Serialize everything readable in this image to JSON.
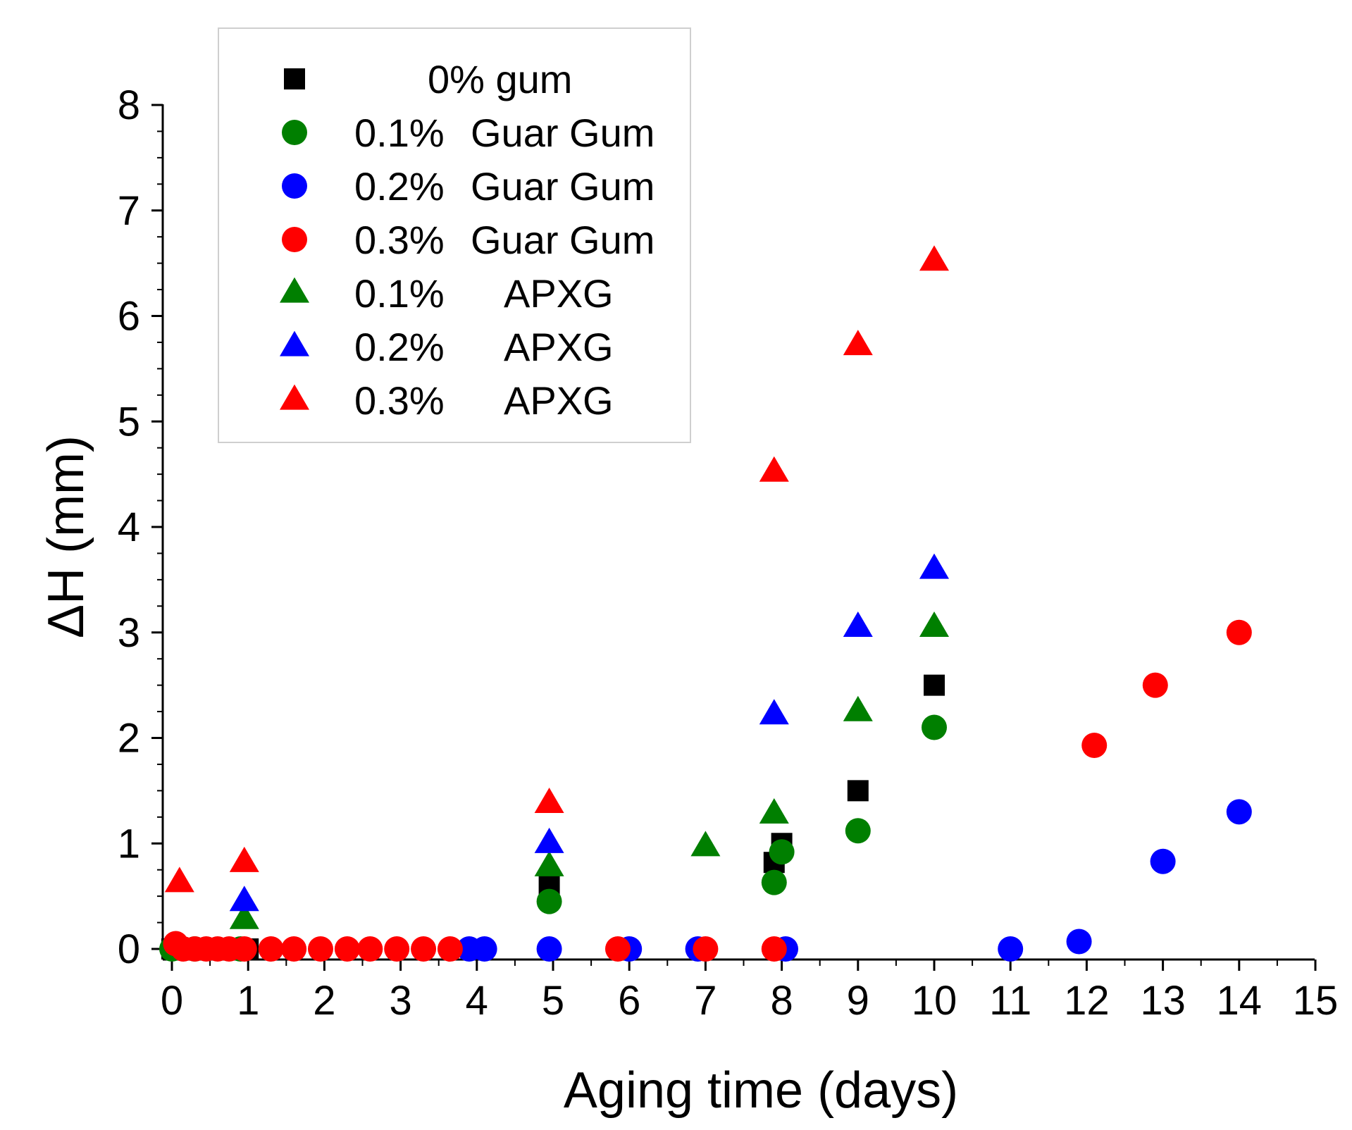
{
  "chart_data": {
    "type": "scatter",
    "title": "",
    "xlabel": "Aging time (days)",
    "ylabel": "ΔH (mm)",
    "xlim": [
      0,
      15
    ],
    "ylim": [
      0,
      8
    ],
    "xticks": [
      0,
      1,
      2,
      3,
      4,
      5,
      6,
      7,
      8,
      9,
      10,
      11,
      12,
      13,
      14,
      15
    ],
    "yticks": [
      0,
      1,
      2,
      3,
      4,
      5,
      6,
      7,
      8
    ],
    "legend_position": "top-left",
    "series": [
      {
        "name": "0% gum",
        "label_concentration": "",
        "label_material": "0% gum",
        "marker": "square",
        "color": "#000000",
        "points": [
          [
            0,
            0
          ],
          [
            0.2,
            0
          ],
          [
            0.4,
            0
          ],
          [
            0.6,
            0
          ],
          [
            0.8,
            0
          ],
          [
            1,
            0
          ],
          [
            4.95,
            0.6
          ],
          [
            7.9,
            0.82
          ],
          [
            8,
            1.0
          ],
          [
            9,
            1.5
          ],
          [
            10,
            2.5
          ]
        ]
      },
      {
        "name": "0.1% Guar Gum",
        "label_concentration": "0.1%",
        "label_material": "Guar Gum",
        "marker": "circle",
        "color": "#007f00",
        "points": [
          [
            0,
            0
          ],
          [
            0.3,
            0
          ],
          [
            0.9,
            0
          ],
          [
            4.95,
            0.45
          ],
          [
            7.9,
            0.63
          ],
          [
            8,
            0.92
          ],
          [
            9,
            1.12
          ],
          [
            10,
            2.1
          ]
        ]
      },
      {
        "name": "0.2% Guar Gum",
        "label_concentration": "0.2%",
        "label_material": "Guar Gum",
        "marker": "circle",
        "color": "#0000ff",
        "points": [
          [
            3.9,
            0
          ],
          [
            4.1,
            0
          ],
          [
            4.95,
            0
          ],
          [
            6,
            0
          ],
          [
            6.9,
            0
          ],
          [
            8.05,
            0
          ],
          [
            11,
            0
          ],
          [
            11.9,
            0.07
          ],
          [
            13,
            0.83
          ],
          [
            14,
            1.3
          ]
        ]
      },
      {
        "name": "0.3% Guar Gum",
        "label_concentration": "0.3%",
        "label_material": "Guar Gum",
        "marker": "circle",
        "color": "#ff0000",
        "points": [
          [
            0.05,
            0.05
          ],
          [
            0.15,
            0
          ],
          [
            0.3,
            0
          ],
          [
            0.45,
            0
          ],
          [
            0.6,
            0
          ],
          [
            0.75,
            0
          ],
          [
            0.95,
            0
          ],
          [
            1.3,
            0
          ],
          [
            1.6,
            0
          ],
          [
            1.95,
            0
          ],
          [
            2.3,
            0
          ],
          [
            2.6,
            0
          ],
          [
            2.95,
            0
          ],
          [
            3.3,
            0
          ],
          [
            3.65,
            0
          ],
          [
            5.85,
            0
          ],
          [
            7,
            0
          ],
          [
            7.9,
            0
          ],
          [
            12.1,
            1.93
          ],
          [
            12.9,
            2.5
          ],
          [
            14,
            3.0
          ]
        ]
      },
      {
        "name": "0.1% APXG",
        "label_concentration": "0.1%",
        "label_material": "APXG",
        "marker": "triangle",
        "color": "#007f00",
        "points": [
          [
            0.95,
            0.28
          ],
          [
            4.95,
            0.78
          ],
          [
            7,
            0.97
          ],
          [
            7.9,
            1.28
          ],
          [
            9,
            2.25
          ],
          [
            10,
            3.05
          ]
        ]
      },
      {
        "name": "0.2% APXG",
        "label_concentration": "0.2%",
        "label_material": "APXG",
        "marker": "triangle",
        "color": "#0000ff",
        "points": [
          [
            0.95,
            0.45
          ],
          [
            4.95,
            1.0
          ],
          [
            7.9,
            2.22
          ],
          [
            9,
            3.05
          ],
          [
            10,
            3.6
          ]
        ]
      },
      {
        "name": "0.3% APXG",
        "label_concentration": "0.3%",
        "label_material": "APXG",
        "marker": "triangle",
        "color": "#ff0000",
        "points": [
          [
            0.1,
            0.63
          ],
          [
            0.95,
            0.82
          ],
          [
            4.95,
            1.38
          ],
          [
            7.9,
            4.52
          ],
          [
            9,
            5.72
          ],
          [
            10,
            6.52
          ]
        ]
      }
    ]
  }
}
